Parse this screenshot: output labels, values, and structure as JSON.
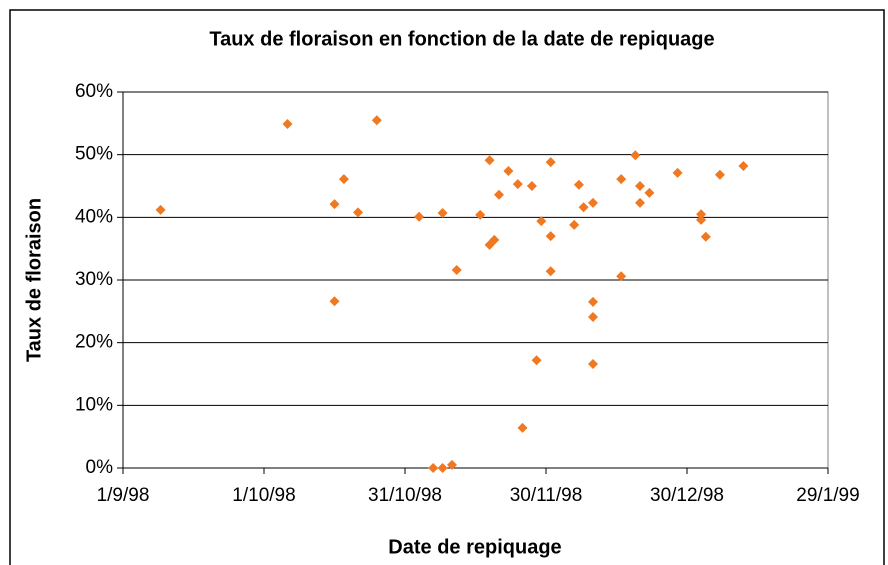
{
  "chart_data": {
    "type": "scatter",
    "title": "Taux de floraison en fonction de la date de repiquage",
    "x_label": "Date de repiquage",
    "y_label": "Taux de floraison",
    "color": "#f07820",
    "grid": true,
    "x": [
      "1998-09-09",
      "1998-10-06",
      "1998-10-16",
      "1998-10-16",
      "1998-10-18",
      "1998-10-21",
      "1998-10-25",
      "1998-11-03",
      "1998-11-06",
      "1998-11-08",
      "1998-11-10",
      "1998-11-08",
      "1998-11-11",
      "1998-11-16",
      "1998-11-18",
      "1998-11-18",
      "1998-11-19",
      "1998-11-20",
      "1998-11-22",
      "1998-11-24",
      "1998-11-25",
      "1998-11-27",
      "1998-11-28",
      "1998-11-29",
      "1998-12-01",
      "1998-12-01",
      "1998-12-01",
      "1998-12-06",
      "1998-12-07",
      "1998-12-08",
      "1998-12-10",
      "1998-12-10",
      "1998-12-10",
      "1998-12-10",
      "1998-12-16",
      "1998-12-16",
      "1998-12-19",
      "1998-12-20",
      "1998-12-20",
      "1998-12-22",
      "1998-12-28",
      "1999-01-02",
      "1999-01-02",
      "1999-01-03",
      "1999-01-06",
      "1999-01-11"
    ],
    "values": [
      41.2,
      54.9,
      42.1,
      26.6,
      46.1,
      40.8,
      55.5,
      40.1,
      0,
      0,
      0.5,
      40.7,
      31.6,
      40.4,
      49.1,
      35.6,
      36.4,
      43.6,
      47.4,
      45.3,
      6.4,
      45.0,
      17.2,
      39.4,
      48.8,
      31.4,
      37.0,
      38.8,
      45.2,
      41.6,
      42.3,
      26.5,
      24.1,
      16.6,
      46.1,
      30.6,
      49.9,
      45.0,
      42.3,
      43.9,
      47.1,
      40.5,
      39.6,
      36.9,
      46.8,
      48.2
    ],
    "xlim": [
      "1998-09-01",
      "1999-01-29"
    ],
    "xticks": [
      {
        "value": "1998-09-01",
        "label": "1/9/98"
      },
      {
        "value": "1998-10-01",
        "label": "1/10/98"
      },
      {
        "value": "1998-10-31",
        "label": "31/10/98"
      },
      {
        "value": "1998-11-30",
        "label": "30/11/98"
      },
      {
        "value": "1998-12-30",
        "label": "30/12/98"
      },
      {
        "value": "1999-01-29",
        "label": "29/1/99"
      }
    ],
    "ylim": [
      0,
      60
    ],
    "yticks": [
      {
        "value": 0,
        "label": "0%"
      },
      {
        "value": 10,
        "label": "10%"
      },
      {
        "value": 20,
        "label": "20%"
      },
      {
        "value": 30,
        "label": "30%"
      },
      {
        "value": 40,
        "label": "40%"
      },
      {
        "value": 50,
        "label": "50%"
      },
      {
        "value": 60,
        "label": "60%"
      }
    ]
  }
}
